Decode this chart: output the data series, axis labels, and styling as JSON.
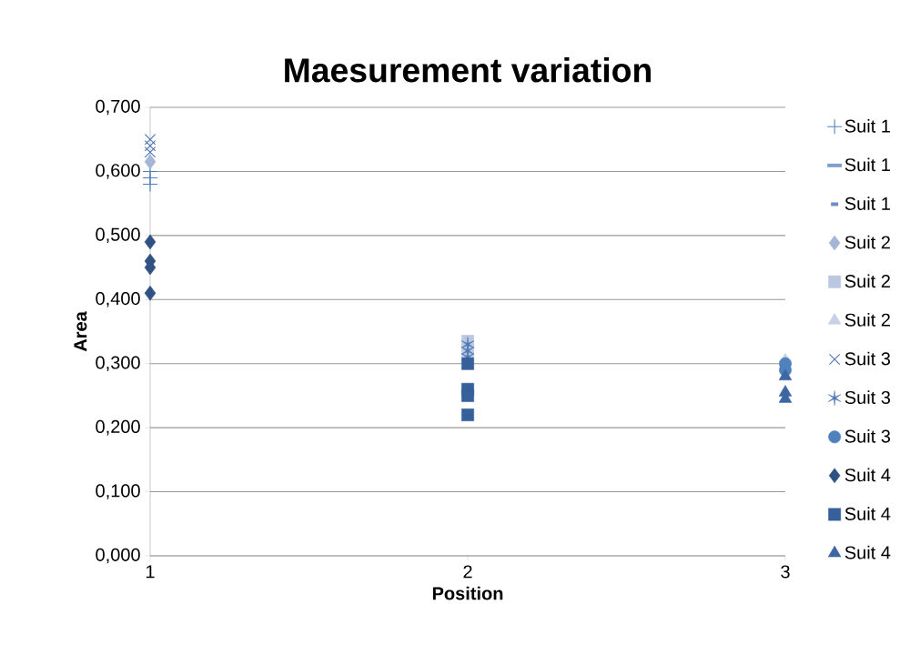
{
  "chart_data": {
    "type": "scatter",
    "title": "Maesurement variation",
    "xlabel": "Position",
    "ylabel": "Area",
    "xlim": [
      1,
      3
    ],
    "xticks": [
      1,
      2,
      3
    ],
    "ylim": [
      0,
      0.7
    ],
    "yticks": [
      {
        "value": 0,
        "label": "0,000"
      },
      {
        "value": 0.1,
        "label": "0,100"
      },
      {
        "value": 0.2,
        "label": "0,200"
      },
      {
        "value": 0.3,
        "label": "0,300"
      },
      {
        "value": 0.4,
        "label": "0,400"
      },
      {
        "value": 0.5,
        "label": "0,500"
      },
      {
        "value": 0.6,
        "label": "0,600"
      },
      {
        "value": 0.7,
        "label": "0,700"
      }
    ],
    "grid": "y",
    "legend": "right",
    "series": [
      {
        "name": "Suit 1",
        "marker": "plus",
        "color": "#4f81bd",
        "x": [
          1,
          1,
          1
        ],
        "values": [
          0.6,
          0.59,
          0.58
        ]
      },
      {
        "name": "Suit 1",
        "marker": "dash",
        "color": "#7f9fcf",
        "values": [
          null
        ]
      },
      {
        "name": "Suit 1",
        "marker": "smalldash",
        "color": "#6d8fc8",
        "values": [
          null
        ]
      },
      {
        "name": "Suit 2",
        "marker": "diamond",
        "color": "#a5b5d6",
        "x": [
          1
        ],
        "values": [
          0.615
        ]
      },
      {
        "name": "Suit 2",
        "marker": "square",
        "color": "#b9c7e0",
        "x": [
          2,
          2
        ],
        "values": [
          0.335,
          0.32
        ]
      },
      {
        "name": "Suit 2",
        "marker": "triangle",
        "color": "#c8d1e3",
        "x": [
          3
        ],
        "values": [
          0.305
        ]
      },
      {
        "name": "Suit 3",
        "marker": "cross",
        "color": "#4a73b0",
        "x": [
          1,
          1,
          1
        ],
        "values": [
          0.65,
          0.64,
          0.63
        ]
      },
      {
        "name": "Suit 3",
        "color": "#4f78b5",
        "x": [
          2,
          2,
          2
        ],
        "values": [
          0.33,
          0.32,
          0.31
        ]
      },
      {
        "name": "Suit 3",
        "marker": "circle",
        "color": "#4f81bd",
        "x": [
          3,
          3
        ],
        "values": [
          0.3,
          0.29
        ]
      },
      {
        "name": "Suit 4",
        "marker": "diamond",
        "color": "#2f5283",
        "x": [
          1,
          1,
          1,
          1
        ],
        "values": [
          0.49,
          0.46,
          0.45,
          0.41
        ]
      },
      {
        "name": "Suit 4",
        "marker": "square",
        "color": "#36609a",
        "x": [
          2,
          2,
          2,
          2
        ],
        "values": [
          0.3,
          0.26,
          0.25,
          0.22
        ]
      },
      {
        "name": "Suit 4",
        "marker": "triangle",
        "color": "#3d67a3",
        "x": [
          3,
          3,
          3
        ],
        "values": [
          0.28,
          0.255,
          0.245
        ]
      }
    ]
  }
}
